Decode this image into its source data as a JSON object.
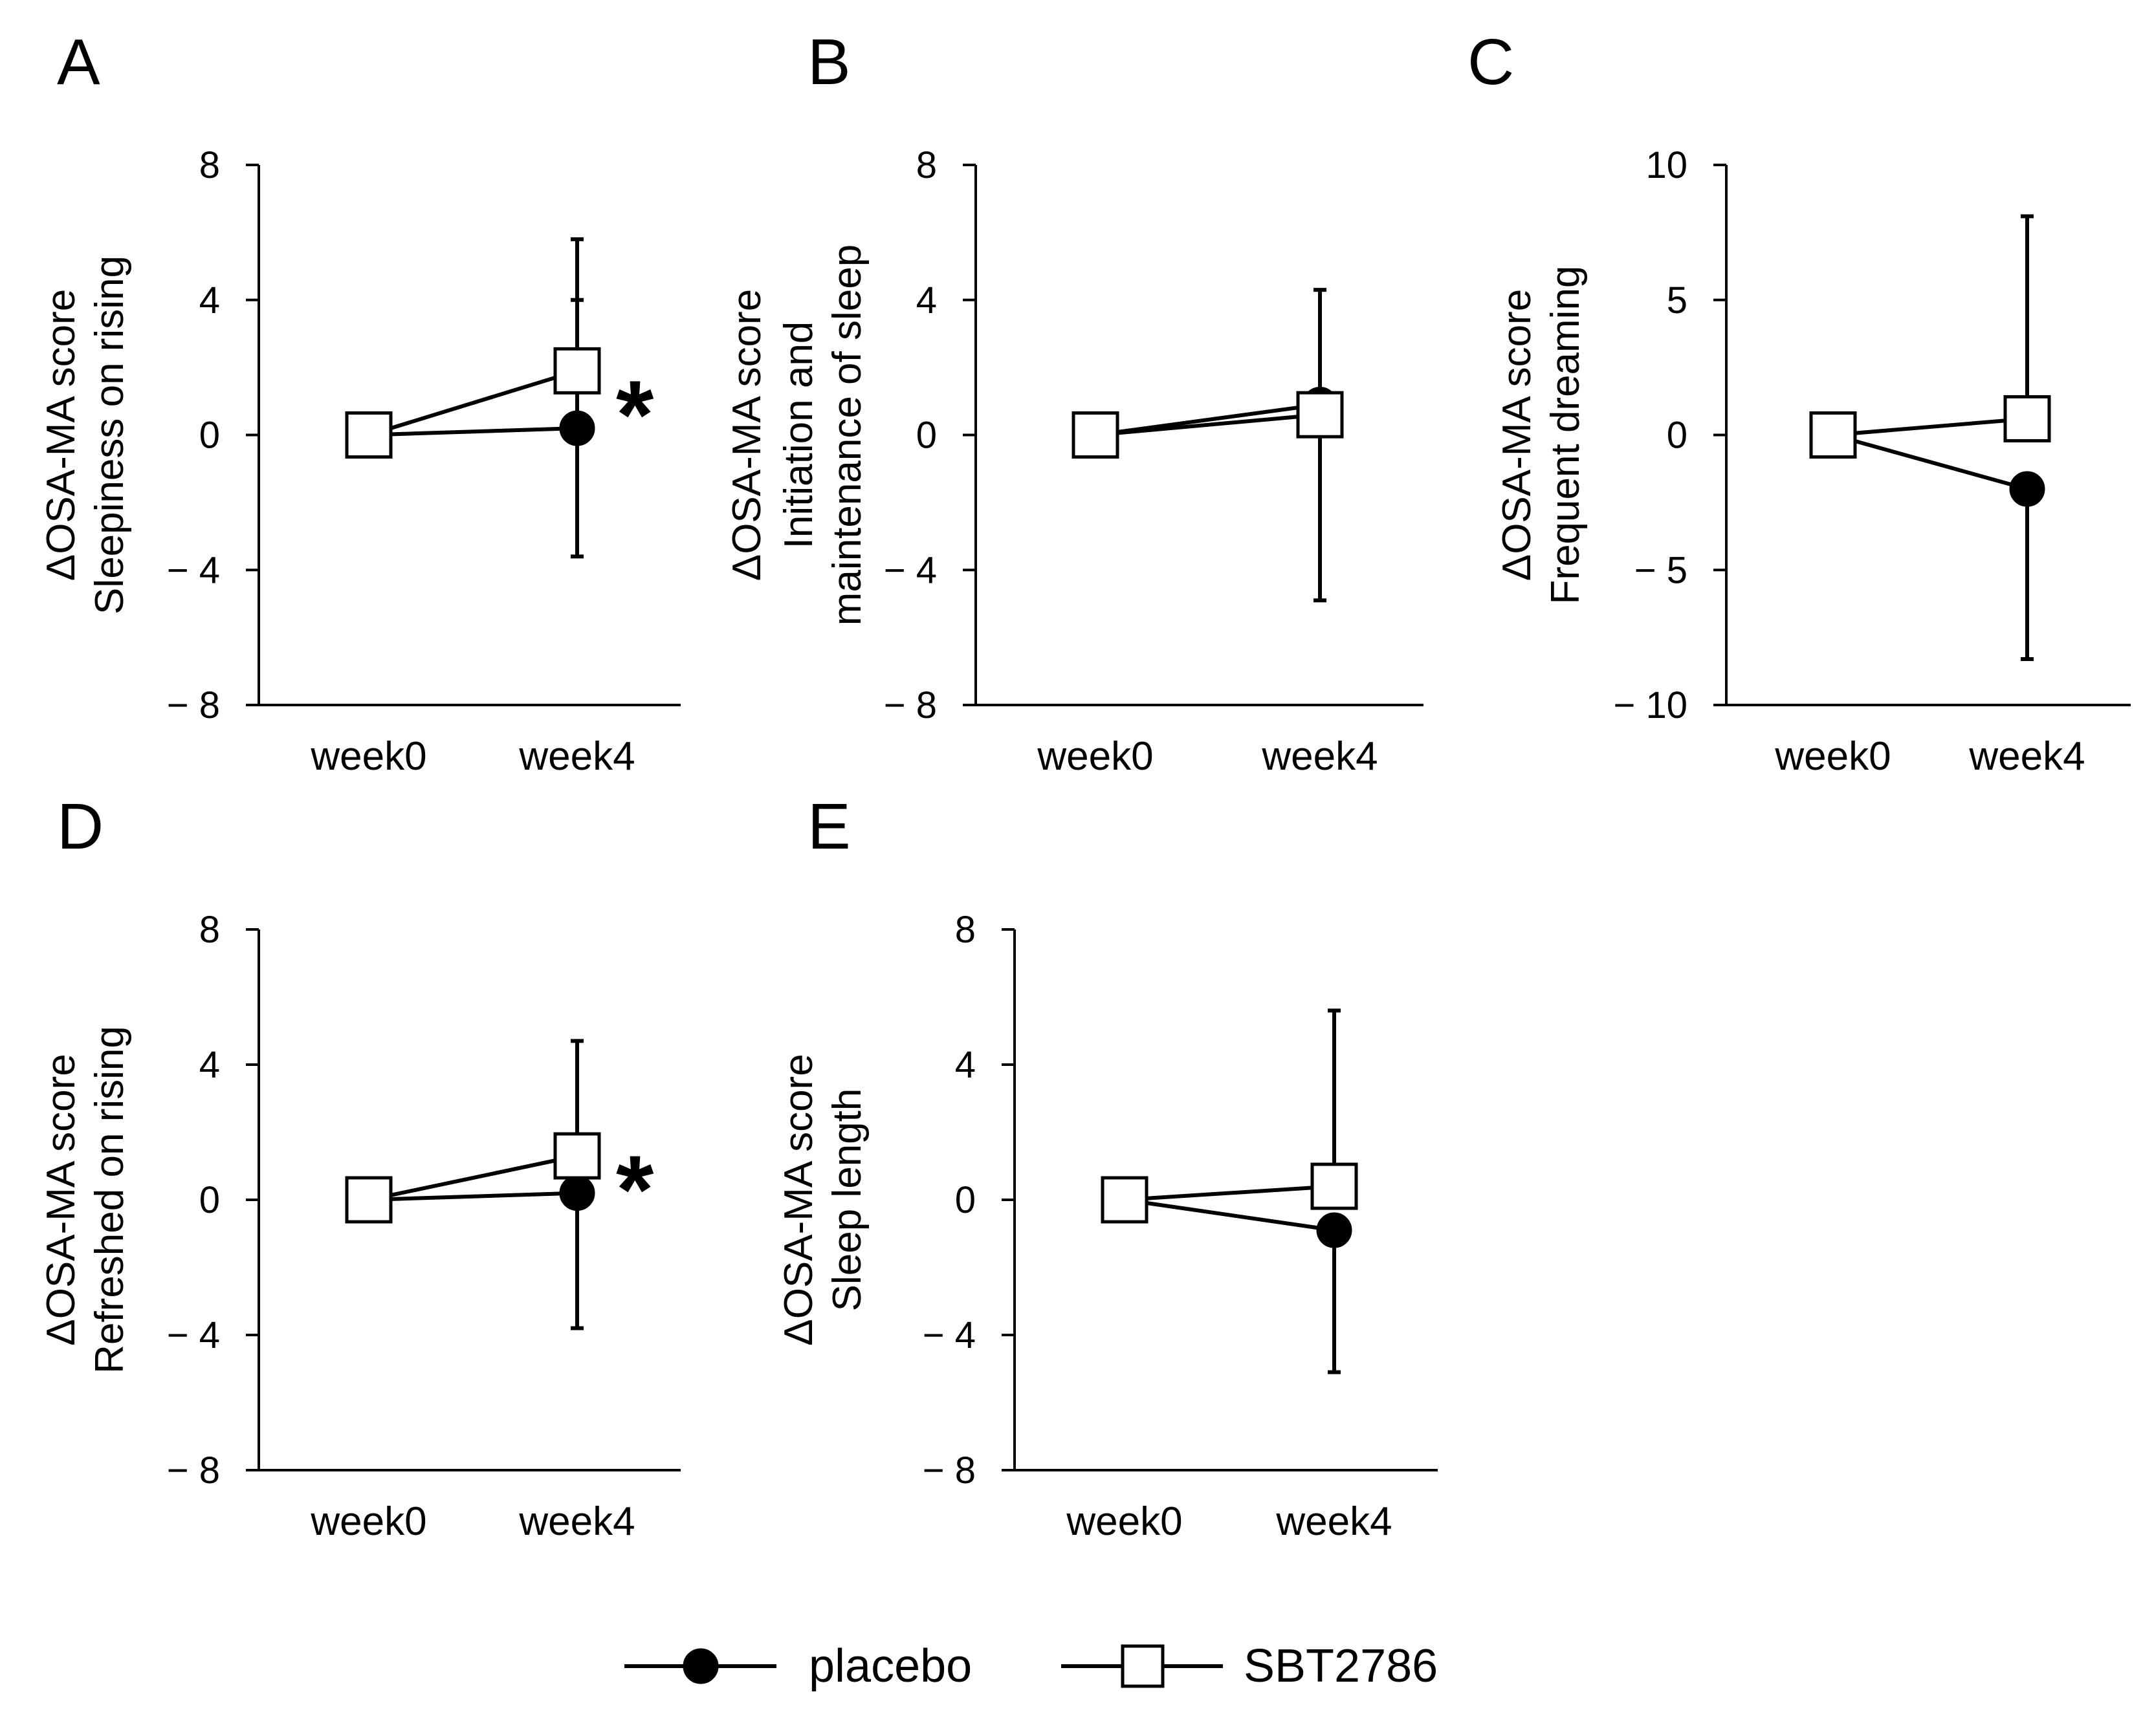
{
  "chart_data": [
    {
      "panel": "A",
      "type": "line",
      "categories": [
        "week0",
        "week4"
      ],
      "ylabel_lines": [
        "ΔOSA-MA score",
        "Sleepiness on rising"
      ],
      "ylim": [
        -8,
        8
      ],
      "yticks": [
        8,
        4,
        0,
        -4,
        -8
      ],
      "ytick_labels": [
        "8",
        "4",
        "0",
        "− 4",
        "− 8"
      ],
      "series": [
        {
          "name": "placebo",
          "values": [
            0,
            0.2
          ],
          "error_upper": [
            0,
            3.8
          ],
          "error_lower": [
            0,
            3.8
          ]
        },
        {
          "name": "SBT2786",
          "values": [
            0,
            1.9
          ],
          "error_upper": [
            0,
            3.9
          ],
          "error_lower": [
            0,
            0
          ]
        }
      ],
      "annotation": "*"
    },
    {
      "panel": "B",
      "type": "line",
      "categories": [
        "week0",
        "week4"
      ],
      "ylabel_lines": [
        "ΔOSA-MA score",
        "Initiation and",
        "maintenance of sleep"
      ],
      "ylim": [
        -8,
        8
      ],
      "yticks": [
        8,
        4,
        0,
        -4,
        -8
      ],
      "ytick_labels": [
        "8",
        "4",
        "0",
        "− 4",
        "− 8"
      ],
      "series": [
        {
          "name": "placebo",
          "values": [
            0,
            0.9
          ],
          "error_upper": [
            0,
            3.4
          ],
          "error_lower": [
            0,
            0
          ]
        },
        {
          "name": "SBT2786",
          "values": [
            0,
            0.6
          ],
          "error_upper": [
            0,
            0
          ],
          "error_lower": [
            0,
            5.5
          ]
        }
      ],
      "annotation": ""
    },
    {
      "panel": "C",
      "type": "line",
      "categories": [
        "week0",
        "week4"
      ],
      "ylabel_lines": [
        "ΔOSA-MA score",
        "Frequent dreaming"
      ],
      "ylim": [
        -10,
        10
      ],
      "yticks": [
        10,
        5,
        0,
        -5,
        -10
      ],
      "ytick_labels": [
        "10",
        "5",
        "0",
        "− 5",
        "− 10"
      ],
      "series": [
        {
          "name": "placebo",
          "values": [
            0,
            -2.0
          ],
          "error_upper": [
            0,
            0
          ],
          "error_lower": [
            0,
            6.3
          ]
        },
        {
          "name": "SBT2786",
          "values": [
            0,
            0.6
          ],
          "error_upper": [
            0,
            7.5
          ],
          "error_lower": [
            0,
            0
          ]
        }
      ],
      "annotation": ""
    },
    {
      "panel": "D",
      "type": "line",
      "categories": [
        "week0",
        "week4"
      ],
      "ylabel_lines": [
        "ΔOSA-MA score",
        "Refreshed on rising"
      ],
      "ylim": [
        -8,
        8
      ],
      "yticks": [
        8,
        4,
        0,
        -4,
        -8
      ],
      "ytick_labels": [
        "8",
        "4",
        "0",
        "− 4",
        "− 8"
      ],
      "series": [
        {
          "name": "placebo",
          "values": [
            0,
            0.2
          ],
          "error_upper": [
            0,
            0
          ],
          "error_lower": [
            0,
            4.0
          ]
        },
        {
          "name": "SBT2786",
          "values": [
            0,
            1.3
          ],
          "error_upper": [
            0,
            3.4
          ],
          "error_lower": [
            0,
            0
          ]
        }
      ],
      "annotation": "*"
    },
    {
      "panel": "E",
      "type": "line",
      "categories": [
        "week0",
        "week4"
      ],
      "ylabel_lines": [
        "ΔOSA-MA score",
        "Sleep length"
      ],
      "ylim": [
        -8,
        8
      ],
      "yticks": [
        8,
        4,
        0,
        -4,
        -8
      ],
      "ytick_labels": [
        "8",
        "4",
        "0",
        "− 4",
        "− 8"
      ],
      "series": [
        {
          "name": "placebo",
          "values": [
            0,
            -0.9
          ],
          "error_upper": [
            0,
            0
          ],
          "error_lower": [
            0,
            4.2
          ]
        },
        {
          "name": "SBT2786",
          "values": [
            0,
            0.4
          ],
          "error_upper": [
            0,
            5.2
          ],
          "error_lower": [
            0,
            0
          ]
        }
      ],
      "annotation": ""
    }
  ],
  "legend": {
    "items": [
      {
        "label": "placebo",
        "marker": "filled-circle"
      },
      {
        "label": "SBT2786",
        "marker": "open-square"
      }
    ]
  }
}
